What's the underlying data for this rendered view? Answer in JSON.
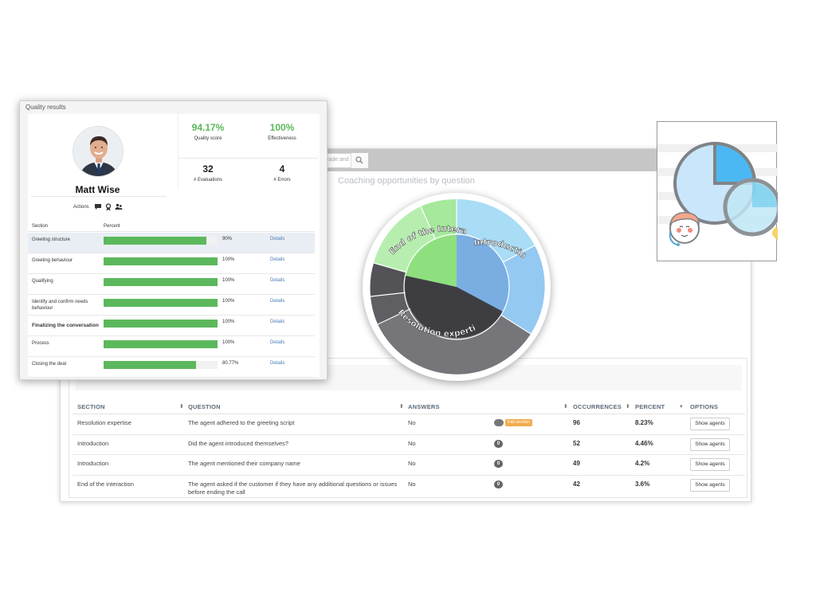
{
  "coaching": {
    "search_placeholder": "rade and k",
    "title": "Coaching opportunities by question",
    "donut_labels": [
      "End of the Interaction",
      "Introduction",
      "Resolution expertise"
    ],
    "columns": [
      "SECTION",
      "QUESTION",
      "ANSWERS",
      "OCCURRENCES",
      "PERCENT",
      "OPTIONS"
    ],
    "rows": [
      {
        "section": "Resolution expertise",
        "question": "The agent adhered to the greeting script",
        "answer": "No",
        "badge": "Fail section",
        "occurrences": "96",
        "percent": "8.23%",
        "button": "Show agents"
      },
      {
        "section": "Introduction",
        "question": "Did the agent introduced themselves?",
        "answer": "No",
        "badge": "0",
        "occurrences": "52",
        "percent": "4.46%",
        "button": "Show agents"
      },
      {
        "section": "Introduction",
        "question": "The agent mentioned their company name",
        "answer": "No",
        "badge": "0",
        "occurrences": "49",
        "percent": "4.2%",
        "button": "Show agents"
      },
      {
        "section": "End of the interaction",
        "question": "The agent asked if the customer if they have any additional questions or issues before ending the call",
        "answer": "No",
        "badge": "0",
        "occurrences": "42",
        "percent": "3.6%",
        "button": "Show agents"
      }
    ]
  },
  "quality": {
    "title": "Quality results",
    "agent_name": "Matt Wise",
    "actions_label": "Actions",
    "metrics": {
      "quality_score": {
        "value": "94.17%",
        "label": "Quality score"
      },
      "effectiveness": {
        "value": "100%",
        "label": "Effectiveness"
      },
      "evaluations": {
        "value": "32",
        "label": "# Evaluations"
      },
      "errors": {
        "value": "4",
        "label": "# Errors"
      }
    },
    "section_header": "Section",
    "percent_header": "Percent",
    "sections": [
      {
        "name": "Greeting structure",
        "percent": "90%",
        "value": 0.9,
        "link": "Details"
      },
      {
        "name": "Greeting behaviour",
        "percent": "100%",
        "value": 1.0,
        "link": "Details"
      },
      {
        "name": "Qualifying",
        "percent": "100%",
        "value": 1.0,
        "link": "Details"
      },
      {
        "name": "Identify and confirm needs behaviour",
        "percent": "100%",
        "value": 1.0,
        "link": "Details"
      },
      {
        "name": "Finalizing the conversation",
        "percent": "100%",
        "value": 1.0,
        "link": "Details"
      },
      {
        "name": "Process",
        "percent": "100%",
        "value": 1.0,
        "link": "Details"
      },
      {
        "name": "Closing the deal",
        "percent": "80.77%",
        "value": 0.8077,
        "link": "Details"
      }
    ]
  },
  "colors": {
    "green": "#5cb85c",
    "link": "#4a7ab5",
    "fail_badge": "#f0ad4e"
  }
}
